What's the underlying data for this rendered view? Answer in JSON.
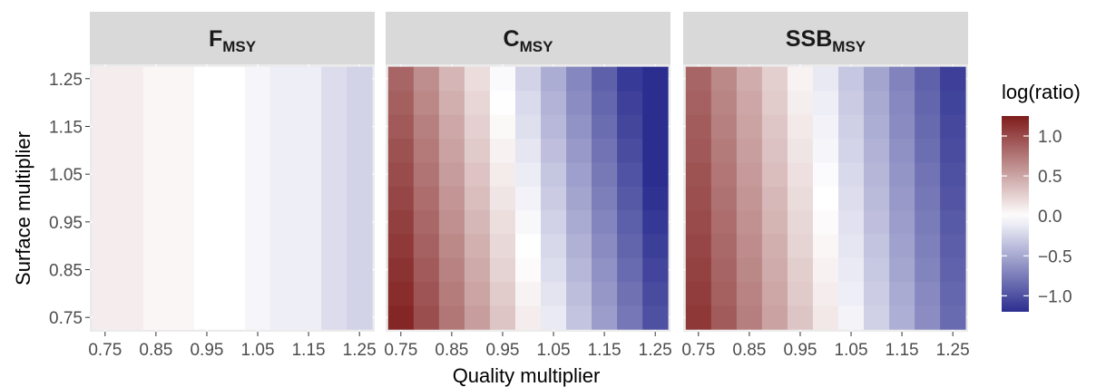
{
  "chart_data": {
    "type": "heatmap",
    "xlabel": "Quality multiplier",
    "ylabel": "Surface multiplier",
    "x_values": [
      0.75,
      0.8,
      0.85,
      0.9,
      0.95,
      1.0,
      1.05,
      1.1,
      1.15,
      1.2,
      1.25
    ],
    "y_values": [
      0.75,
      0.8,
      0.85,
      0.9,
      0.95,
      1.0,
      1.05,
      1.1,
      1.15,
      1.2,
      1.25
    ],
    "x_tick_labels": [
      "0.75",
      "0.85",
      "0.95",
      "1.05",
      "1.15",
      "1.25"
    ],
    "y_tick_labels": [
      "0.75",
      "0.85",
      "0.95",
      "1.05",
      "1.15",
      "1.25"
    ],
    "legend": {
      "title": "log(ratio)",
      "limits": [
        -1.2,
        1.25
      ],
      "breaks": [
        1.0,
        0.5,
        0.0,
        -0.5,
        -1.0
      ],
      "break_labels": [
        "1.0",
        "0.5",
        "0.0",
        "−0.5",
        "−1.0"
      ],
      "colors": {
        "high": "#7f1d1d",
        "mid": "#ffffff",
        "low": "#2b2e8f"
      }
    },
    "panels": [
      {
        "strip": {
          "main": "F",
          "sub": "MSY"
        },
        "note": "values vary along x only; same for every y",
        "values_by_x": [
          0.1,
          0.1,
          0.05,
          0.05,
          0.0,
          0.0,
          -0.05,
          -0.1,
          -0.1,
          -0.2,
          -0.25
        ]
      },
      {
        "strip": {
          "main": "C",
          "sub": "MSY"
        },
        "note": "value = intercept + x_slope*(x-0.75) + y_slope*(y-0.75)",
        "intercept": 1.2,
        "x_slope": -4.4,
        "y_slope": -0.7
      },
      {
        "strip": {
          "main": "SSB",
          "sub": "MSY"
        },
        "note": "value = intercept + x_slope*(x-0.75) + y_slope*(y-0.75)",
        "intercept": 1.1,
        "x_slope": -3.9,
        "y_slope": -0.5
      }
    ],
    "grid": true
  }
}
